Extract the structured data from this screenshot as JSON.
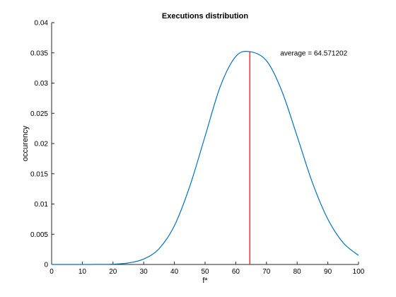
{
  "chart_data": {
    "type": "line",
    "title": "Executions distribution",
    "xlabel": "f*",
    "ylabel": "occurency",
    "xlim": [
      0,
      100
    ],
    "ylim": [
      0,
      0.04
    ],
    "x_ticks": [
      0,
      10,
      20,
      30,
      40,
      50,
      60,
      70,
      80,
      90,
      100
    ],
    "y_ticks": [
      0,
      0.005,
      0.01,
      0.015,
      0.02,
      0.025,
      0.03,
      0.035,
      0.04
    ],
    "x_tick_labels": [
      "0",
      "10",
      "20",
      "30",
      "40",
      "50",
      "60",
      "70",
      "80",
      "90",
      "100"
    ],
    "y_tick_labels": [
      "0",
      "0.005",
      "0.01",
      "0.015",
      "0.02",
      "0.025",
      "0.03",
      "0.035",
      "0.04"
    ],
    "grid": false,
    "series": [
      {
        "color": "#0072BD",
        "x": [
          0,
          5,
          10,
          15,
          20,
          25,
          30,
          35,
          40,
          45,
          50,
          55,
          60,
          64.57,
          70,
          75,
          80,
          85,
          90,
          95,
          100
        ],
        "y": [
          0,
          0,
          0,
          1e-05,
          5e-05,
          0.00025,
          0.0009,
          0.0026,
          0.0064,
          0.0129,
          0.0212,
          0.0295,
          0.0344,
          0.0352,
          0.0337,
          0.0287,
          0.0212,
          0.0135,
          0.0075,
          0.0036,
          0.0015
        ]
      }
    ],
    "vline": {
      "x": 64.571202,
      "y0": 0,
      "y1": 0.0352,
      "color": "#FF0000"
    },
    "annotation": {
      "text": "average = 64.571202",
      "x": 74.5,
      "y": 0.035
    }
  }
}
